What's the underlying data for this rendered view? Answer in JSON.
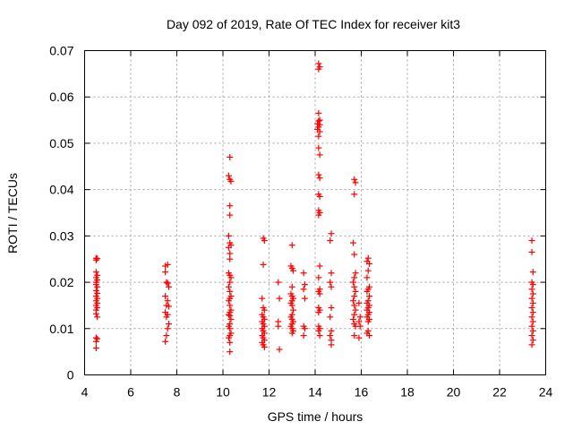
{
  "chart_data": {
    "type": "scatter",
    "title": "Day 092 of 2019, Rate Of TEC Index for receiver kit3",
    "xlabel": "GPS time / hours",
    "ylabel": "ROTI / TECUs",
    "xlim": [
      4,
      24
    ],
    "ylim": [
      0,
      0.07
    ],
    "xticks": [
      4,
      6,
      8,
      10,
      12,
      14,
      16,
      18,
      20,
      22,
      24
    ],
    "yticks": [
      0,
      0.01,
      0.02,
      0.03,
      0.04,
      0.05,
      0.06,
      0.07
    ],
    "ytick_labels": [
      "0",
      "0.01",
      "0.02",
      "0.03",
      "0.04",
      "0.05",
      "0.06",
      "0.07"
    ],
    "grid": true,
    "marker": "+",
    "color": "#ff0000",
    "series": [
      {
        "name": "ROTI",
        "points": [
          [
            4.5,
            0.0252
          ],
          [
            4.5,
            0.0248
          ],
          [
            4.55,
            0.0251
          ],
          [
            4.5,
            0.0222
          ],
          [
            4.55,
            0.0215
          ],
          [
            4.5,
            0.021
          ],
          [
            4.55,
            0.0205
          ],
          [
            4.5,
            0.02
          ],
          [
            4.5,
            0.0195
          ],
          [
            4.55,
            0.019
          ],
          [
            4.5,
            0.0182
          ],
          [
            4.55,
            0.0176
          ],
          [
            4.5,
            0.017
          ],
          [
            4.55,
            0.0165
          ],
          [
            4.5,
            0.016
          ],
          [
            4.55,
            0.0155
          ],
          [
            4.5,
            0.015
          ],
          [
            4.55,
            0.0145
          ],
          [
            4.5,
            0.014
          ],
          [
            4.5,
            0.0132
          ],
          [
            4.55,
            0.0125
          ],
          [
            4.5,
            0.008
          ],
          [
            4.55,
            0.0078
          ],
          [
            4.5,
            0.0072
          ],
          [
            4.5,
            0.0058
          ],
          [
            7.5,
            0.0235
          ],
          [
            7.6,
            0.0238
          ],
          [
            7.5,
            0.0222
          ],
          [
            7.55,
            0.02
          ],
          [
            7.6,
            0.0198
          ],
          [
            7.65,
            0.019
          ],
          [
            7.5,
            0.017
          ],
          [
            7.6,
            0.016
          ],
          [
            7.55,
            0.015
          ],
          [
            7.65,
            0.0148
          ],
          [
            7.5,
            0.0135
          ],
          [
            7.6,
            0.013
          ],
          [
            7.55,
            0.0125
          ],
          [
            7.65,
            0.011
          ],
          [
            7.6,
            0.01
          ],
          [
            7.55,
            0.0085
          ],
          [
            7.5,
            0.0072
          ],
          [
            10.3,
            0.047
          ],
          [
            10.25,
            0.043
          ],
          [
            10.3,
            0.0422
          ],
          [
            10.35,
            0.0418
          ],
          [
            10.3,
            0.0365
          ],
          [
            10.3,
            0.0345
          ],
          [
            10.25,
            0.03
          ],
          [
            10.3,
            0.0285
          ],
          [
            10.35,
            0.028
          ],
          [
            10.25,
            0.0275
          ],
          [
            10.3,
            0.0262
          ],
          [
            10.3,
            0.025
          ],
          [
            10.25,
            0.022
          ],
          [
            10.3,
            0.0215
          ],
          [
            10.35,
            0.021
          ],
          [
            10.3,
            0.02
          ],
          [
            10.25,
            0.019
          ],
          [
            10.3,
            0.018
          ],
          [
            10.35,
            0.017
          ],
          [
            10.3,
            0.0165
          ],
          [
            10.25,
            0.016
          ],
          [
            10.3,
            0.015
          ],
          [
            10.35,
            0.014
          ],
          [
            10.3,
            0.0135
          ],
          [
            10.25,
            0.013
          ],
          [
            10.3,
            0.0128
          ],
          [
            10.35,
            0.012
          ],
          [
            10.3,
            0.011
          ],
          [
            10.25,
            0.0105
          ],
          [
            10.3,
            0.01
          ],
          [
            10.35,
            0.009
          ],
          [
            10.3,
            0.0085
          ],
          [
            10.25,
            0.008
          ],
          [
            10.3,
            0.007
          ],
          [
            10.3,
            0.005
          ],
          [
            11.75,
            0.0295
          ],
          [
            11.8,
            0.029
          ],
          [
            11.75,
            0.0238
          ],
          [
            11.7,
            0.0165
          ],
          [
            11.75,
            0.0145
          ],
          [
            11.8,
            0.014
          ],
          [
            11.7,
            0.013
          ],
          [
            11.75,
            0.0125
          ],
          [
            11.8,
            0.012
          ],
          [
            11.7,
            0.0115
          ],
          [
            11.75,
            0.011
          ],
          [
            11.8,
            0.0105
          ],
          [
            11.7,
            0.01
          ],
          [
            11.75,
            0.0095
          ],
          [
            11.8,
            0.009
          ],
          [
            11.7,
            0.0085
          ],
          [
            11.75,
            0.008
          ],
          [
            11.8,
            0.0075
          ],
          [
            11.7,
            0.007
          ],
          [
            11.75,
            0.0065
          ],
          [
            11.8,
            0.006
          ],
          [
            12.4,
            0.02
          ],
          [
            12.45,
            0.0165
          ],
          [
            12.4,
            0.0115
          ],
          [
            12.4,
            0.0105
          ],
          [
            12.45,
            0.0055
          ],
          [
            13.0,
            0.028
          ],
          [
            12.95,
            0.0235
          ],
          [
            13.0,
            0.023
          ],
          [
            13.05,
            0.0225
          ],
          [
            13.0,
            0.019
          ],
          [
            12.95,
            0.0175
          ],
          [
            13.0,
            0.017
          ],
          [
            13.05,
            0.0165
          ],
          [
            13.0,
            0.016
          ],
          [
            12.95,
            0.0155
          ],
          [
            13.0,
            0.015
          ],
          [
            13.05,
            0.014
          ],
          [
            13.0,
            0.013
          ],
          [
            12.95,
            0.0125
          ],
          [
            13.0,
            0.012
          ],
          [
            13.05,
            0.0115
          ],
          [
            13.0,
            0.011
          ],
          [
            12.95,
            0.0105
          ],
          [
            13.0,
            0.01
          ],
          [
            13.05,
            0.0095
          ],
          [
            13.0,
            0.009
          ],
          [
            13.5,
            0.022
          ],
          [
            13.55,
            0.0195
          ],
          [
            13.5,
            0.0185
          ],
          [
            13.55,
            0.0165
          ],
          [
            13.5,
            0.0105
          ],
          [
            13.55,
            0.01
          ],
          [
            13.5,
            0.0085
          ],
          [
            14.15,
            0.0672
          ],
          [
            14.2,
            0.0665
          ],
          [
            14.15,
            0.066
          ],
          [
            14.15,
            0.0565
          ],
          [
            14.2,
            0.055
          ],
          [
            14.15,
            0.0548
          ],
          [
            14.1,
            0.0542
          ],
          [
            14.2,
            0.054
          ],
          [
            14.15,
            0.0535
          ],
          [
            14.1,
            0.053
          ],
          [
            14.2,
            0.0525
          ],
          [
            14.15,
            0.0515
          ],
          [
            14.15,
            0.049
          ],
          [
            14.2,
            0.0475
          ],
          [
            14.15,
            0.0432
          ],
          [
            14.2,
            0.0425
          ],
          [
            14.15,
            0.039
          ],
          [
            14.2,
            0.0385
          ],
          [
            14.15,
            0.0355
          ],
          [
            14.2,
            0.035
          ],
          [
            14.15,
            0.0345
          ],
          [
            14.2,
            0.0235
          ],
          [
            14.15,
            0.021
          ],
          [
            14.2,
            0.0185
          ],
          [
            14.15,
            0.018
          ],
          [
            14.2,
            0.0175
          ],
          [
            14.15,
            0.0145
          ],
          [
            14.2,
            0.014
          ],
          [
            14.15,
            0.0135
          ],
          [
            14.15,
            0.0105
          ],
          [
            14.2,
            0.01
          ],
          [
            14.15,
            0.0095
          ],
          [
            14.2,
            0.0085
          ],
          [
            14.7,
            0.0305
          ],
          [
            14.65,
            0.029
          ],
          [
            14.7,
            0.022
          ],
          [
            14.65,
            0.02
          ],
          [
            14.7,
            0.019
          ],
          [
            14.7,
            0.0145
          ],
          [
            14.65,
            0.0125
          ],
          [
            14.7,
            0.0095
          ],
          [
            14.65,
            0.0085
          ],
          [
            14.7,
            0.0075
          ],
          [
            14.7,
            0.0065
          ],
          [
            15.7,
            0.0422
          ],
          [
            15.75,
            0.0415
          ],
          [
            15.7,
            0.039
          ],
          [
            15.65,
            0.0285
          ],
          [
            15.7,
            0.026
          ],
          [
            15.75,
            0.022
          ],
          [
            15.7,
            0.021
          ],
          [
            15.65,
            0.02
          ],
          [
            15.7,
            0.019
          ],
          [
            15.75,
            0.018
          ],
          [
            15.7,
            0.017
          ],
          [
            15.65,
            0.016
          ],
          [
            15.7,
            0.015
          ],
          [
            15.75,
            0.014
          ],
          [
            15.7,
            0.013
          ],
          [
            15.65,
            0.012
          ],
          [
            15.7,
            0.011
          ],
          [
            15.75,
            0.0105
          ],
          [
            15.7,
            0.0085
          ],
          [
            15.9,
            0.0155
          ],
          [
            15.95,
            0.0125
          ],
          [
            15.9,
            0.0115
          ],
          [
            15.95,
            0.0105
          ],
          [
            15.9,
            0.008
          ],
          [
            16.3,
            0.0252
          ],
          [
            16.25,
            0.0245
          ],
          [
            16.35,
            0.024
          ],
          [
            16.3,
            0.0225
          ],
          [
            16.25,
            0.021
          ],
          [
            16.35,
            0.019
          ],
          [
            16.3,
            0.0185
          ],
          [
            16.25,
            0.018
          ],
          [
            16.35,
            0.017
          ],
          [
            16.3,
            0.016
          ],
          [
            16.25,
            0.0155
          ],
          [
            16.35,
            0.015
          ],
          [
            16.3,
            0.0145
          ],
          [
            16.25,
            0.014
          ],
          [
            16.35,
            0.0135
          ],
          [
            16.3,
            0.013
          ],
          [
            16.25,
            0.0125
          ],
          [
            16.35,
            0.012
          ],
          [
            16.3,
            0.0115
          ],
          [
            16.3,
            0.0095
          ],
          [
            16.25,
            0.009
          ],
          [
            16.35,
            0.0085
          ],
          [
            23.4,
            0.029
          ],
          [
            23.4,
            0.0265
          ],
          [
            23.45,
            0.0222
          ],
          [
            23.4,
            0.02
          ],
          [
            23.45,
            0.0195
          ],
          [
            23.4,
            0.0185
          ],
          [
            23.45,
            0.0175
          ],
          [
            23.4,
            0.0165
          ],
          [
            23.45,
            0.0155
          ],
          [
            23.4,
            0.0145
          ],
          [
            23.45,
            0.0135
          ],
          [
            23.4,
            0.0125
          ],
          [
            23.45,
            0.0115
          ],
          [
            23.4,
            0.0105
          ],
          [
            23.45,
            0.0095
          ],
          [
            23.4,
            0.0085
          ],
          [
            23.45,
            0.0075
          ],
          [
            23.4,
            0.0065
          ]
        ]
      }
    ]
  }
}
